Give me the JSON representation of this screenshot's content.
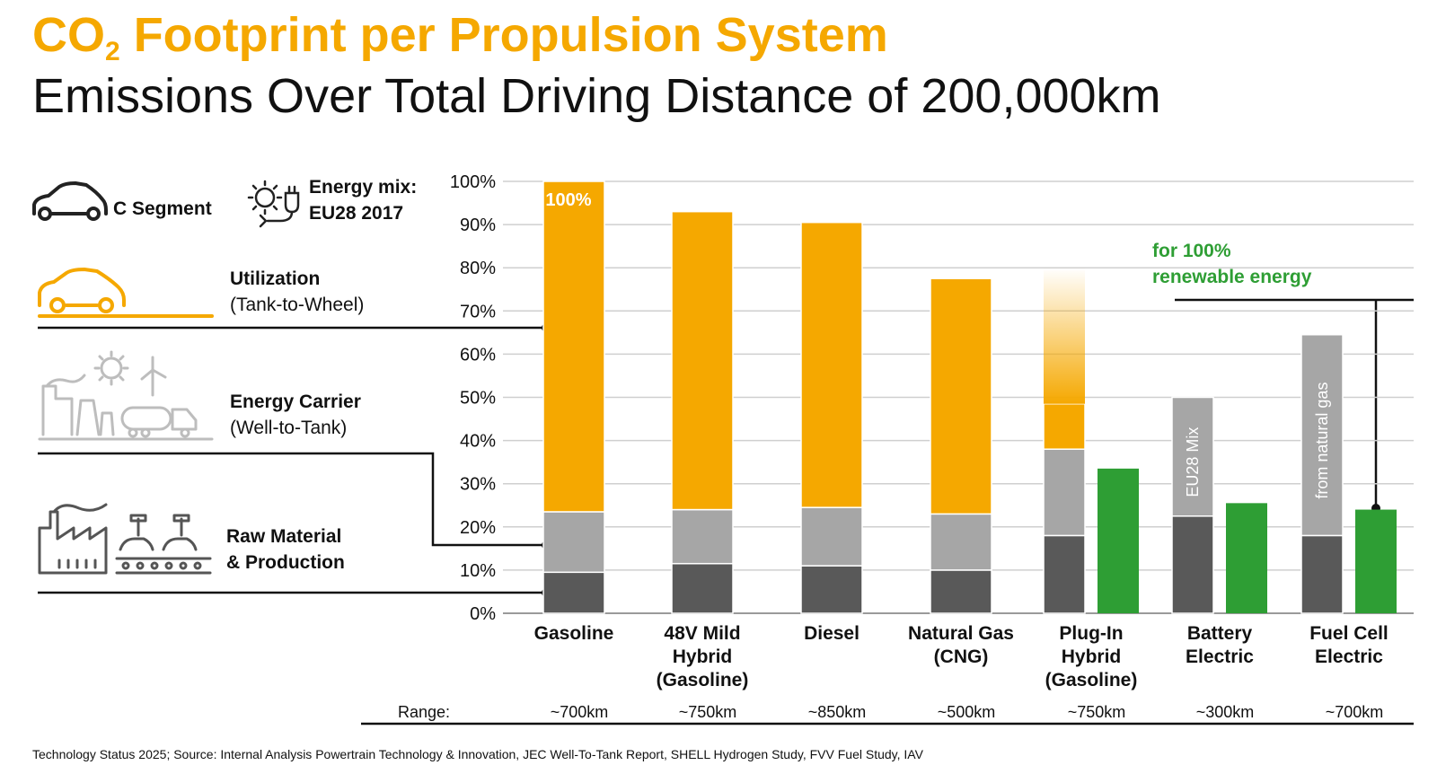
{
  "header": {
    "title_main": "CO",
    "title_sub": "2",
    "title_rest": " Footprint per Propulsion System",
    "subtitle": "Emissions Over Total Driving Distance of 200,000km"
  },
  "legend": {
    "segment_label": "C Segment",
    "energy_mix_line1": "Energy mix:",
    "energy_mix_line2": "EU28 2017",
    "utilization_title": "Utilization",
    "utilization_sub": "(Tank-to-Wheel)",
    "carrier_title": "Energy Carrier",
    "carrier_sub": "(Well-to-Tank)",
    "raw_title": "Raw Material",
    "raw_sub": "& Production",
    "renewable_line1": "for 100%",
    "renewable_line2": "renewable energy"
  },
  "colors": {
    "utilization": "#f5a800",
    "energy_carrier": "#a6a6a6",
    "raw_material": "#595959",
    "renewable": "#2e9e34",
    "title_orange": "#f5a800"
  },
  "chart_data": {
    "type": "bar",
    "stacked": true,
    "ylim": [
      0,
      100
    ],
    "y_ticks": [
      "0%",
      "10%",
      "20%",
      "30%",
      "40%",
      "50%",
      "60%",
      "70%",
      "80%",
      "90%",
      "100%"
    ],
    "grid": true,
    "categories": [
      [
        "Gasoline"
      ],
      [
        "48V Mild",
        "Hybrid",
        "(Gasoline)"
      ],
      [
        "Diesel"
      ],
      [
        "Natural Gas",
        "(CNG)"
      ],
      [
        "Plug-In",
        "Hybrid",
        "(Gasoline)"
      ],
      [
        "Battery",
        "Electric"
      ],
      [
        "Fuel Cell",
        "Electric"
      ]
    ],
    "range_label": "Range:",
    "ranges": [
      "~700km",
      "~750km",
      "~850km",
      "~500km",
      "~750km",
      "~300km",
      "~700km"
    ],
    "series": [
      {
        "name": "Raw Material & Production",
        "values": [
          9.5,
          11.5,
          11,
          10,
          18,
          22.5,
          18
        ]
      },
      {
        "name": "Energy Carrier (Well-to-Tank)",
        "values": [
          14,
          12.5,
          13.5,
          13,
          20,
          27.5,
          46.5
        ]
      },
      {
        "name": "Utilization (Tank-to-Wheel)",
        "values": [
          76.5,
          69,
          66,
          54.5,
          10.5,
          0,
          0
        ]
      }
    ],
    "phev_faded_top": 80,
    "renewable_values": [
      null,
      null,
      null,
      null,
      33.5,
      25.5,
      24
    ],
    "bar_labels": [
      {
        "bar": 0,
        "text": "100%"
      },
      {
        "bar": 5,
        "text": "EU28 Mix"
      },
      {
        "bar": 6,
        "text": "from natural gas"
      }
    ]
  },
  "footnote": "Technology Status 2025; Source: Internal Analysis Powertrain Technology & Innovation, JEC Well-To-Tank Report, SHELL Hydrogen Study, FVV Fuel Study, IAV"
}
